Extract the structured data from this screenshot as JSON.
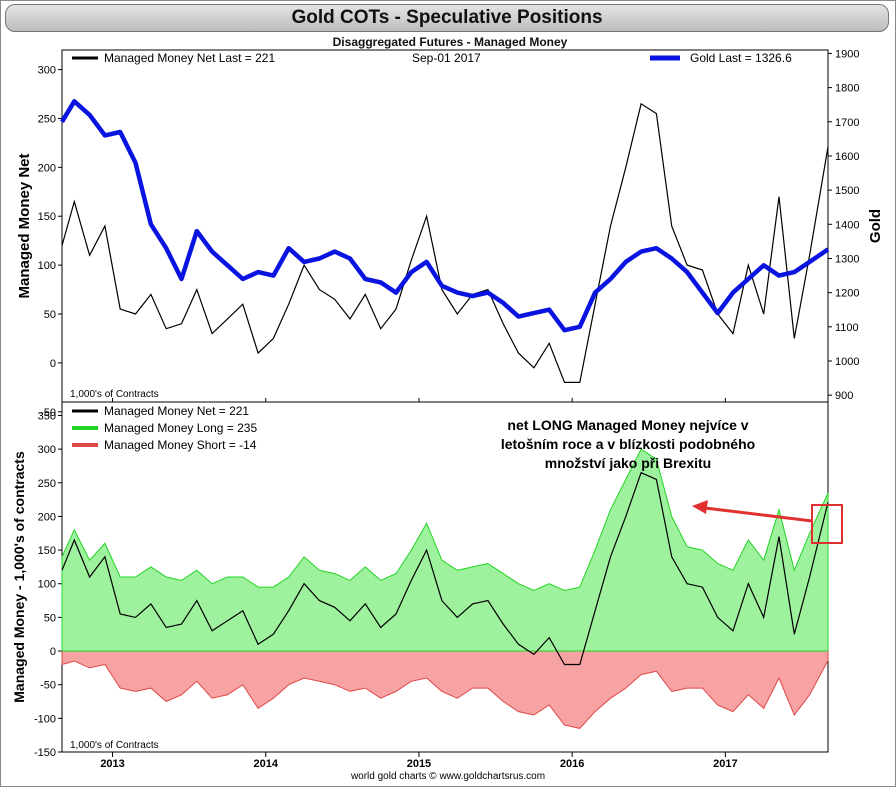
{
  "title": "Gold COTs - Speculative Positions",
  "subtitle": "Disaggregated Futures - Managed Money",
  "colors": {
    "net": "#000000",
    "gold": "#0a14e0",
    "long_fill": "#9ef29e",
    "long_line": "#22d422",
    "short_fill": "#f7a3a3",
    "short_line": "#e04848",
    "annotation": "#e03030"
  },
  "chart_data": [
    {
      "type": "line",
      "legend_left": "Managed Money Net   Last = 221",
      "date_label": "Sep-01  2017",
      "legend_right": "Gold Last = 1326.6",
      "ylabel": "Managed Money Net",
      "ylabel_right": "Gold",
      "units_note": "1,000's of Contracts",
      "ylim": [
        -40,
        320
      ],
      "yticks": [
        "-50",
        "0",
        "50",
        "100",
        "150",
        "200",
        "250",
        "300"
      ],
      "ylim_right": [
        880,
        1910
      ],
      "yticks_right": [
        "900",
        "1000",
        "1100",
        "1200",
        "1300",
        "1400",
        "1500",
        "1600",
        "1700",
        "1800",
        "1900"
      ],
      "x": [
        2012.67,
        2012.75,
        2012.85,
        2012.95,
        2013.05,
        2013.15,
        2013.25,
        2013.35,
        2013.45,
        2013.55,
        2013.65,
        2013.75,
        2013.85,
        2013.95,
        2014.05,
        2014.15,
        2014.25,
        2014.35,
        2014.45,
        2014.55,
        2014.65,
        2014.75,
        2014.85,
        2014.95,
        2015.05,
        2015.15,
        2015.25,
        2015.35,
        2015.45,
        2015.55,
        2015.65,
        2015.75,
        2015.85,
        2015.95,
        2016.05,
        2016.15,
        2016.25,
        2016.35,
        2016.45,
        2016.55,
        2016.65,
        2016.75,
        2016.85,
        2016.95,
        2017.05,
        2017.15,
        2017.25,
        2017.35,
        2017.45,
        2017.55,
        2017.67
      ],
      "series": [
        {
          "name": "Managed Money Net",
          "values": [
            120,
            165,
            110,
            140,
            55,
            50,
            70,
            35,
            40,
            75,
            30,
            45,
            60,
            10,
            25,
            60,
            100,
            75,
            65,
            45,
            70,
            35,
            55,
            105,
            150,
            75,
            50,
            70,
            75,
            40,
            10,
            -5,
            20,
            -20,
            -20,
            60,
            140,
            200,
            265,
            255,
            140,
            100,
            95,
            50,
            30,
            100,
            50,
            170,
            25,
            110,
            221
          ]
        },
        {
          "name": "Gold",
          "values": [
            1700,
            1760,
            1720,
            1660,
            1670,
            1580,
            1400,
            1330,
            1240,
            1380,
            1320,
            1280,
            1240,
            1260,
            1250,
            1330,
            1290,
            1300,
            1320,
            1300,
            1240,
            1230,
            1200,
            1260,
            1290,
            1220,
            1200,
            1190,
            1200,
            1170,
            1130,
            1140,
            1150,
            1090,
            1100,
            1200,
            1240,
            1290,
            1320,
            1330,
            1300,
            1260,
            1200,
            1140,
            1200,
            1240,
            1280,
            1250,
            1260,
            1290,
            1326.6
          ]
        }
      ]
    },
    {
      "type": "area",
      "legend": [
        "Managed Money Net     = 221",
        "Managed Money Long   = 235",
        "Managed Money Short  = -14"
      ],
      "ylabel": "Managed Money - 1,000's of contracts",
      "units_note": "1,000's of Contracts",
      "ylim": [
        -150,
        370
      ],
      "yticks": [
        "-150",
        "-100",
        "-50",
        "0",
        "50",
        "100",
        "150",
        "200",
        "250",
        "300",
        "350"
      ],
      "annotation": "net LONG Managed Money nejvíce v letošním roce a v blízkosti podobného množství jako při Brexitu",
      "annotation_lines": [
        "net LONG Managed Money nejvíce v",
        "letošním roce a v blízkosti podobného",
        "množství jako při Brexitu"
      ],
      "x": [
        2012.67,
        2012.75,
        2012.85,
        2012.95,
        2013.05,
        2013.15,
        2013.25,
        2013.35,
        2013.45,
        2013.55,
        2013.65,
        2013.75,
        2013.85,
        2013.95,
        2014.05,
        2014.15,
        2014.25,
        2014.35,
        2014.45,
        2014.55,
        2014.65,
        2014.75,
        2014.85,
        2014.95,
        2015.05,
        2015.15,
        2015.25,
        2015.35,
        2015.45,
        2015.55,
        2015.65,
        2015.75,
        2015.85,
        2015.95,
        2016.05,
        2016.15,
        2016.25,
        2016.35,
        2016.45,
        2016.55,
        2016.65,
        2016.75,
        2016.85,
        2016.95,
        2017.05,
        2017.15,
        2017.25,
        2017.35,
        2017.45,
        2017.55,
        2017.67
      ],
      "series": [
        {
          "name": "Managed Money Net",
          "values": [
            120,
            165,
            110,
            140,
            55,
            50,
            70,
            35,
            40,
            75,
            30,
            45,
            60,
            10,
            25,
            60,
            100,
            75,
            65,
            45,
            70,
            35,
            55,
            105,
            150,
            75,
            50,
            70,
            75,
            40,
            10,
            -5,
            20,
            -20,
            -20,
            60,
            140,
            200,
            265,
            255,
            140,
            100,
            95,
            50,
            30,
            100,
            50,
            170,
            25,
            110,
            221
          ]
        },
        {
          "name": "Managed Money Long",
          "values": [
            140,
            180,
            135,
            160,
            110,
            110,
            125,
            110,
            105,
            120,
            100,
            110,
            110,
            95,
            95,
            110,
            140,
            120,
            115,
            105,
            125,
            105,
            115,
            150,
            190,
            135,
            120,
            125,
            130,
            115,
            100,
            90,
            100,
            90,
            95,
            150,
            210,
            255,
            300,
            285,
            200,
            155,
            150,
            130,
            120,
            165,
            135,
            210,
            120,
            175,
            235
          ]
        },
        {
          "name": "Managed Money Short",
          "values": [
            -20,
            -15,
            -25,
            -20,
            -55,
            -60,
            -55,
            -75,
            -65,
            -45,
            -70,
            -65,
            -50,
            -85,
            -70,
            -50,
            -40,
            -45,
            -50,
            -60,
            -55,
            -70,
            -60,
            -45,
            -40,
            -60,
            -70,
            -55,
            -55,
            -75,
            -90,
            -95,
            -80,
            -110,
            -115,
            -90,
            -70,
            -55,
            -35,
            -30,
            -60,
            -55,
            -55,
            -80,
            -90,
            -65,
            -85,
            -40,
            -95,
            -65,
            -14
          ]
        }
      ],
      "xtick_labels": [
        "2013",
        "2014",
        "2015",
        "2016",
        "2017"
      ],
      "xtick_values": [
        2013.0,
        2014.0,
        2015.0,
        2016.0,
        2017.0
      ]
    }
  ],
  "footer": "world gold charts © www.goldchartsrus.com"
}
